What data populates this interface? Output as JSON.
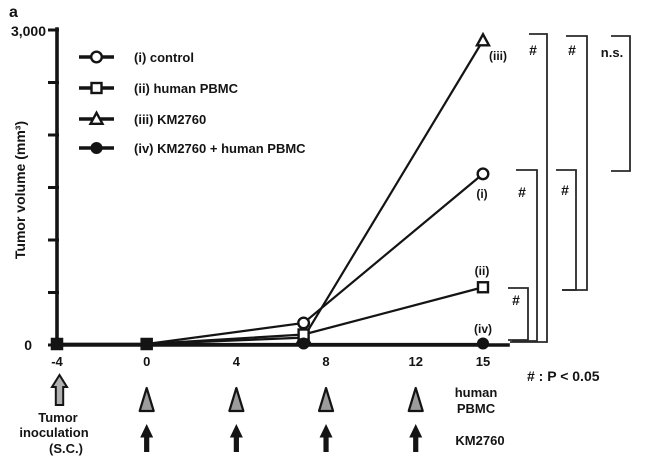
{
  "panel_label": "a",
  "chart_data": {
    "type": "line",
    "title": "",
    "xlabel": "",
    "ylabel": "Tumor volume (mm³)",
    "ylim": [
      0,
      3000
    ],
    "yticks_values": [
      0,
      500,
      1000,
      1500,
      2000,
      2500,
      3000
    ],
    "ytick_labels": {
      "top": "3,000",
      "bottom": "0"
    },
    "xticks": [
      "-4",
      "0",
      "4",
      "8",
      "12",
      "15"
    ],
    "xtick_days": [
      -4,
      0,
      4,
      8,
      12,
      15
    ],
    "x_days": [
      -4,
      0,
      7,
      15
    ],
    "grid": false,
    "legend_position": "upper-left",
    "series": [
      {
        "key": "i",
        "label": "(i) control",
        "end_label": "(i)",
        "marker": "open-circle",
        "values": [
          0,
          0,
          210,
          1630
        ]
      },
      {
        "key": "ii",
        "label": "(ii) human PBMC",
        "end_label": "(ii)",
        "marker": "open-square",
        "values": [
          0,
          0,
          100,
          550
        ]
      },
      {
        "key": "iii",
        "label": "(iii) KM2760",
        "end_label": "(iii)",
        "marker": "open-triangle",
        "values": [
          0,
          0,
          70,
          2900
        ]
      },
      {
        "key": "iv",
        "label": "(iv) KM2760 + human PBMC",
        "end_label": "(iv)",
        "marker": "filled-circle",
        "values": [
          0,
          0,
          0,
          0
        ]
      }
    ]
  },
  "significance": {
    "brackets": [
      {
        "from": "iii",
        "to": "iv",
        "label": "#"
      },
      {
        "from": "iii",
        "to": "ii",
        "label": "#"
      },
      {
        "from": "iii",
        "to": "i",
        "label": "n.s."
      },
      {
        "from": "i",
        "to": "iv",
        "label": "#"
      },
      {
        "from": "i",
        "to": "ii",
        "label": "#"
      },
      {
        "from": "ii",
        "to": "iv",
        "label": "#"
      }
    ],
    "footnote": "# : P < 0.05"
  },
  "timeline": {
    "inoculation": {
      "day": -4,
      "glyph": "gray-block-arrow",
      "label_lines": [
        "Tumor",
        "inoculation",
        "(S.C.)"
      ]
    },
    "pbmc": {
      "days": [
        0,
        4,
        8,
        12
      ],
      "glyph": "gray-triangle",
      "label_lines": [
        "human",
        "PBMC"
      ]
    },
    "km2760": {
      "days": [
        0,
        4,
        8,
        12
      ],
      "glyph": "black-arrow",
      "label": "KM2760"
    }
  },
  "colors": {
    "ink": "#141414",
    "gray_fill": "#9c9c9c",
    "block_arrow_fill": "#b0b0b0",
    "background": "#ffffff"
  }
}
